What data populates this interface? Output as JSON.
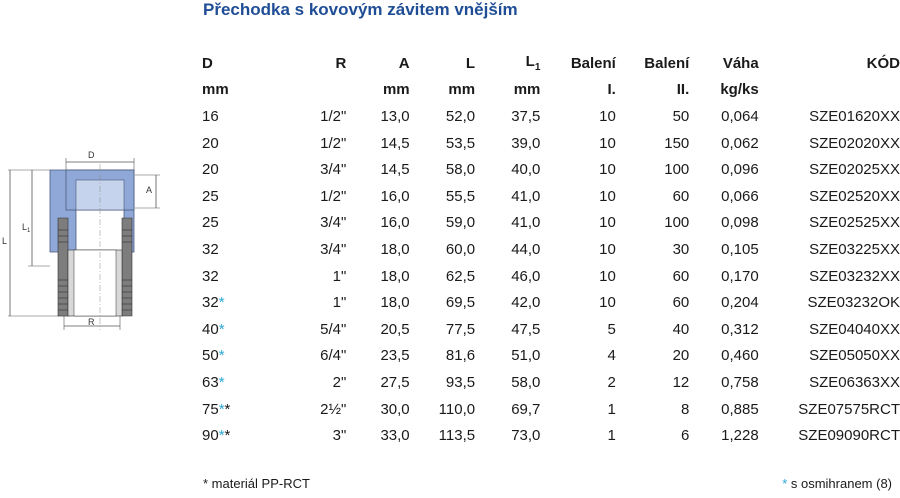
{
  "title": "Přechodka s kovovým závitem vnějším",
  "headers": {
    "D": "D",
    "R": "R",
    "A": "A",
    "L": "L",
    "L1": "L",
    "L1_sub": "1",
    "B1": "Balení",
    "B2": "Balení",
    "V": "Váha",
    "K": "KÓD"
  },
  "units": {
    "D": "mm",
    "R": "",
    "A": "mm",
    "L": "mm",
    "L1": "mm",
    "B1": "I.",
    "B2": "II.",
    "V": "kg/ks",
    "K": ""
  },
  "rows": [
    {
      "D": "16",
      "star": "",
      "R": "1/2\"",
      "A": "13,0",
      "L": "52,0",
      "L1": "37,5",
      "B1": "10",
      "B2": "50",
      "V": "0,064",
      "K": "SZE01620XX"
    },
    {
      "D": "20",
      "star": "",
      "R": "1/2\"",
      "A": "14,5",
      "L": "53,5",
      "L1": "39,0",
      "B1": "10",
      "B2": "150",
      "V": "0,062",
      "K": "SZE02020XX"
    },
    {
      "D": "20",
      "star": "",
      "R": "3/4\"",
      "A": "14,5",
      "L": "58,0",
      "L1": "40,0",
      "B1": "10",
      "B2": "100",
      "V": "0,096",
      "K": "SZE02025XX"
    },
    {
      "D": "25",
      "star": "",
      "R": "1/2\"",
      "A": "16,0",
      "L": "55,5",
      "L1": "41,0",
      "B1": "10",
      "B2": "60",
      "V": "0,066",
      "K": "SZE02520XX"
    },
    {
      "D": "25",
      "star": "",
      "R": "3/4\"",
      "A": "16,0",
      "L": "59,0",
      "L1": "41,0",
      "B1": "10",
      "B2": "100",
      "V": "0,098",
      "K": "SZE02525XX"
    },
    {
      "D": "32",
      "star": "",
      "R": "3/4\"",
      "A": "18,0",
      "L": "60,0",
      "L1": "44,0",
      "B1": "10",
      "B2": "30",
      "V": "0,105",
      "K": "SZE03225XX"
    },
    {
      "D": "32",
      "star": "",
      "R": "1\"",
      "A": "18,0",
      "L": "62,5",
      "L1": "46,0",
      "B1": "10",
      "B2": "60",
      "V": "0,170",
      "K": "SZE03232XX"
    },
    {
      "D": "32",
      "star": "*",
      "R": "1\"",
      "A": "18,0",
      "L": "69,5",
      "L1": "42,0",
      "B1": "10",
      "B2": "60",
      "V": "0,204",
      "K": "SZE03232OK"
    },
    {
      "D": "40",
      "star": "*",
      "R": "5/4\"",
      "A": "20,5",
      "L": "77,5",
      "L1": "47,5",
      "B1": "5",
      "B2": "40",
      "V": "0,312",
      "K": "SZE04040XX"
    },
    {
      "D": "50",
      "star": "*",
      "R": "6/4\"",
      "A": "23,5",
      "L": "81,6",
      "L1": "51,0",
      "B1": "4",
      "B2": "20",
      "V": "0,460",
      "K": "SZE05050XX"
    },
    {
      "D": "63",
      "star": "*",
      "R": "2\"",
      "A": "27,5",
      "L": "93,5",
      "L1": "58,0",
      "B1": "2",
      "B2": "12",
      "V": "0,758",
      "K": "SZE06363XX"
    },
    {
      "D": "75",
      "star": "*",
      "star2": "*",
      "R": "2½\"",
      "A": "30,0",
      "L": "110,0",
      "L1": "69,7",
      "B1": "1",
      "B2": "8",
      "V": "0,885",
      "K": "SZE07575RCT"
    },
    {
      "D": "90",
      "star": "*",
      "star2": "*",
      "R": "3\"",
      "A": "33,0",
      "L": "113,5",
      "L1": "73,0",
      "B1": "1",
      "B2": "6",
      "V": "1,228",
      "K": "SZE09090RCT"
    }
  ],
  "footnotes": {
    "left": "* materiál PP-RCT",
    "right_star": "*",
    "right_text": " s osmihranem (8)"
  },
  "diagram_labels": {
    "D": "D",
    "A": "A",
    "L1": "L",
    "L1_sub": "1",
    "L": "L",
    "R": "R"
  },
  "colors": {
    "title": "#1f4e96",
    "star": "#2aa8d6",
    "fitting_blue": "#8fa8d8",
    "metal_gray": "#7d7d7d"
  }
}
